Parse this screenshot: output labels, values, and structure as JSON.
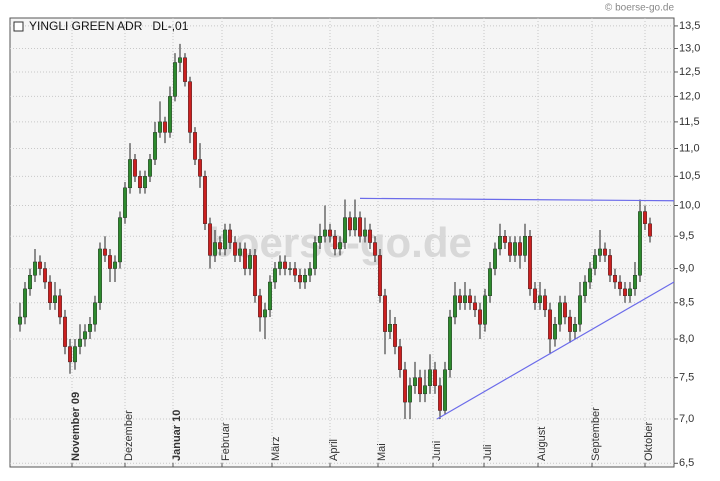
{
  "chart_data": {
    "type": "candlestick",
    "title": "YINGLI GREEN ADR   DL-,01",
    "copyright": "© boerse-go.de",
    "watermark": "boerse-go.de",
    "log_scale": true,
    "grid": true,
    "up_color": "#2e8b2e",
    "down_color": "#cc2020",
    "wick_color": "#222222",
    "trendline_color": "#6b6bea",
    "xlim": [
      -2,
      130.8
    ],
    "ylim": [
      6.46,
      13.68
    ],
    "yticks": [
      {
        "value": 6.5,
        "label": "6,5"
      },
      {
        "value": 7.0,
        "label": "7,0"
      },
      {
        "value": 7.5,
        "label": "7,5"
      },
      {
        "value": 8.0,
        "label": "8,0"
      },
      {
        "value": 8.5,
        "label": "8,5"
      },
      {
        "value": 9.0,
        "label": "9,0"
      },
      {
        "value": 9.5,
        "label": "9,5"
      },
      {
        "value": 10.0,
        "label": "10,0"
      },
      {
        "value": 10.5,
        "label": "10,5"
      },
      {
        "value": 11.0,
        "label": "11,0"
      },
      {
        "value": 11.5,
        "label": "11,5"
      },
      {
        "value": 12.0,
        "label": "12,0"
      },
      {
        "value": 12.5,
        "label": "12,5"
      },
      {
        "value": 13.0,
        "label": "13,0"
      },
      {
        "value": 13.5,
        "label": "13,5"
      }
    ],
    "xticks": [
      {
        "value": 10.4,
        "label": "November 09",
        "bold": true
      },
      {
        "value": 21,
        "label": "Dezember"
      },
      {
        "value": 30.6,
        "label": "Januar 10",
        "bold": true
      },
      {
        "value": 40.4,
        "label": "Februar"
      },
      {
        "value": 50.4,
        "label": "März"
      },
      {
        "value": 62,
        "label": "April"
      },
      {
        "value": 71.6,
        "label": "Mai"
      },
      {
        "value": 82.6,
        "label": "Juni"
      },
      {
        "value": 92.8,
        "label": "Juli"
      },
      {
        "value": 103.6,
        "label": "August"
      },
      {
        "value": 114.4,
        "label": "September"
      },
      {
        "value": 125,
        "label": "Oktober"
      }
    ],
    "trendlines": [
      {
        "x": [
          68,
          130.8
        ],
        "y": [
          10.12,
          10.08
        ]
      },
      {
        "x": [
          83.4,
          130.8
        ],
        "y": [
          7.0,
          8.8
        ]
      }
    ],
    "ohlc": [
      [
        8.2,
        8.5,
        8.1,
        8.3
      ],
      [
        8.3,
        8.8,
        8.2,
        8.7
      ],
      [
        8.7,
        9.0,
        8.6,
        8.9
      ],
      [
        8.9,
        9.3,
        8.8,
        9.1
      ],
      [
        9.1,
        9.2,
        8.9,
        9.0
      ],
      [
        9.0,
        9.1,
        8.7,
        8.8
      ],
      [
        8.8,
        8.9,
        8.4,
        8.5
      ],
      [
        8.5,
        8.8,
        8.4,
        8.6
      ],
      [
        8.6,
        8.7,
        8.2,
        8.3
      ],
      [
        8.3,
        8.4,
        7.8,
        7.9
      ],
      [
        7.9,
        8.0,
        7.55,
        7.7
      ],
      [
        7.7,
        8.0,
        7.6,
        7.9
      ],
      [
        7.9,
        8.2,
        7.8,
        8.0
      ],
      [
        8.0,
        8.2,
        7.9,
        8.1
      ],
      [
        8.1,
        8.3,
        8.0,
        8.2
      ],
      [
        8.2,
        8.6,
        8.1,
        8.5
      ],
      [
        8.5,
        9.4,
        8.4,
        9.3
      ],
      [
        9.3,
        9.5,
        9.1,
        9.2
      ],
      [
        9.2,
        9.3,
        8.8,
        9.0
      ],
      [
        9.0,
        9.2,
        8.8,
        9.1
      ],
      [
        9.1,
        9.9,
        9.0,
        9.8
      ],
      [
        9.8,
        10.4,
        9.7,
        10.3
      ],
      [
        10.3,
        11.1,
        10.2,
        10.8
      ],
      [
        10.8,
        10.9,
        10.4,
        10.5
      ],
      [
        10.5,
        10.6,
        10.2,
        10.3
      ],
      [
        10.3,
        10.6,
        10.2,
        10.5
      ],
      [
        10.5,
        10.9,
        10.4,
        10.8
      ],
      [
        10.8,
        11.5,
        10.7,
        11.3
      ],
      [
        11.3,
        11.9,
        11.2,
        11.5
      ],
      [
        11.5,
        11.6,
        11.1,
        11.3
      ],
      [
        11.3,
        12.2,
        11.2,
        12.0
      ],
      [
        12.0,
        12.9,
        11.9,
        12.7
      ],
      [
        12.7,
        13.1,
        12.5,
        12.8
      ],
      [
        12.8,
        12.9,
        12.2,
        12.3
      ],
      [
        12.3,
        12.4,
        11.1,
        11.3
      ],
      [
        11.3,
        11.4,
        10.7,
        10.8
      ],
      [
        10.8,
        11.1,
        10.3,
        10.5
      ],
      [
        10.5,
        10.6,
        9.6,
        9.7
      ],
      [
        9.7,
        9.8,
        9.0,
        9.2
      ],
      [
        9.2,
        9.6,
        9.1,
        9.4
      ],
      [
        9.4,
        9.5,
        9.2,
        9.3
      ],
      [
        9.3,
        9.7,
        9.2,
        9.6
      ],
      [
        9.6,
        9.7,
        9.3,
        9.4
      ],
      [
        9.4,
        9.5,
        9.1,
        9.2
      ],
      [
        9.2,
        9.4,
        9.1,
        9.3
      ],
      [
        9.3,
        9.4,
        8.9,
        9.0
      ],
      [
        9.0,
        9.3,
        8.9,
        9.2
      ],
      [
        9.2,
        9.3,
        8.5,
        8.6
      ],
      [
        8.6,
        8.7,
        8.1,
        8.3
      ],
      [
        8.3,
        8.5,
        8.0,
        8.4
      ],
      [
        8.4,
        8.9,
        8.3,
        8.8
      ],
      [
        8.8,
        9.1,
        8.7,
        9.0
      ],
      [
        9.0,
        9.2,
        8.9,
        9.1
      ],
      [
        9.1,
        9.2,
        8.9,
        9.0
      ],
      [
        9.0,
        9.1,
        8.9,
        9.0
      ],
      [
        9.0,
        9.1,
        8.8,
        8.9
      ],
      [
        8.9,
        9.0,
        8.7,
        8.8
      ],
      [
        8.8,
        9.0,
        8.7,
        8.9
      ],
      [
        8.9,
        9.1,
        8.8,
        9.0
      ],
      [
        9.0,
        9.5,
        8.9,
        9.4
      ],
      [
        9.4,
        9.7,
        9.3,
        9.5
      ],
      [
        9.5,
        10.0,
        9.4,
        9.6
      ],
      [
        9.6,
        9.7,
        9.4,
        9.5
      ],
      [
        9.5,
        9.6,
        9.2,
        9.3
      ],
      [
        9.3,
        9.5,
        9.2,
        9.4
      ],
      [
        9.4,
        10.1,
        9.3,
        9.8
      ],
      [
        9.8,
        9.9,
        9.5,
        9.6
      ],
      [
        9.6,
        10.1,
        9.5,
        9.8
      ],
      [
        9.8,
        9.9,
        9.4,
        9.5
      ],
      [
        9.5,
        9.8,
        9.4,
        9.6
      ],
      [
        9.6,
        9.7,
        9.3,
        9.4
      ],
      [
        9.4,
        9.5,
        9.1,
        9.2
      ],
      [
        9.2,
        9.3,
        8.5,
        8.6
      ],
      [
        8.6,
        8.7,
        7.8,
        8.1
      ],
      [
        8.1,
        8.4,
        8.0,
        8.2
      ],
      [
        8.2,
        8.3,
        7.8,
        7.9
      ],
      [
        7.9,
        8.0,
        7.5,
        7.6
      ],
      [
        7.6,
        7.7,
        7.0,
        7.2
      ],
      [
        7.2,
        7.5,
        7.0,
        7.4
      ],
      [
        7.4,
        7.7,
        7.3,
        7.5
      ],
      [
        7.5,
        7.6,
        7.2,
        7.3
      ],
      [
        7.3,
        7.6,
        7.2,
        7.4
      ],
      [
        7.4,
        7.8,
        7.3,
        7.6
      ],
      [
        7.6,
        7.7,
        7.3,
        7.4
      ],
      [
        7.4,
        7.5,
        7.0,
        7.1
      ],
      [
        7.1,
        7.7,
        7.05,
        7.6
      ],
      [
        7.6,
        8.4,
        7.5,
        8.3
      ],
      [
        8.3,
        8.8,
        8.2,
        8.6
      ],
      [
        8.6,
        8.7,
        8.4,
        8.5
      ],
      [
        8.5,
        8.8,
        8.4,
        8.6
      ],
      [
        8.6,
        8.7,
        8.4,
        8.5
      ],
      [
        8.5,
        8.6,
        8.3,
        8.4
      ],
      [
        8.4,
        8.5,
        8.0,
        8.2
      ],
      [
        8.2,
        8.7,
        8.1,
        8.6
      ],
      [
        8.6,
        9.1,
        8.5,
        9.0
      ],
      [
        9.0,
        9.4,
        8.9,
        9.3
      ],
      [
        9.3,
        9.7,
        9.2,
        9.5
      ],
      [
        9.5,
        9.6,
        9.3,
        9.4
      ],
      [
        9.4,
        9.5,
        9.1,
        9.2
      ],
      [
        9.2,
        9.5,
        9.1,
        9.4
      ],
      [
        9.4,
        9.5,
        9.0,
        9.2
      ],
      [
        9.2,
        9.7,
        9.1,
        9.5
      ],
      [
        9.5,
        9.6,
        8.6,
        8.7
      ],
      [
        8.7,
        8.8,
        8.4,
        8.5
      ],
      [
        8.5,
        8.8,
        8.4,
        8.6
      ],
      [
        8.6,
        8.7,
        8.3,
        8.4
      ],
      [
        8.4,
        8.5,
        7.8,
        8.0
      ],
      [
        8.0,
        8.3,
        7.9,
        8.2
      ],
      [
        8.2,
        8.6,
        8.1,
        8.5
      ],
      [
        8.5,
        8.6,
        8.2,
        8.3
      ],
      [
        8.3,
        8.4,
        7.95,
        8.1
      ],
      [
        8.1,
        8.3,
        8.0,
        8.2
      ],
      [
        8.2,
        8.8,
        8.1,
        8.6
      ],
      [
        8.6,
        8.9,
        8.5,
        8.8
      ],
      [
        8.8,
        9.1,
        8.7,
        9.0
      ],
      [
        9.0,
        9.3,
        8.9,
        9.2
      ],
      [
        9.2,
        9.6,
        9.1,
        9.3
      ],
      [
        9.3,
        9.4,
        9.1,
        9.2
      ],
      [
        9.2,
        9.3,
        8.8,
        8.9
      ],
      [
        8.9,
        9.0,
        8.7,
        8.8
      ],
      [
        8.8,
        8.9,
        8.6,
        8.7
      ],
      [
        8.7,
        8.8,
        8.5,
        8.6
      ],
      [
        8.6,
        8.8,
        8.5,
        8.7
      ],
      [
        8.7,
        9.1,
        8.6,
        8.9
      ],
      [
        8.9,
        10.1,
        8.8,
        9.9
      ],
      [
        9.9,
        10.0,
        9.6,
        9.7
      ],
      [
        9.7,
        9.8,
        9.4,
        9.5
      ]
    ]
  }
}
